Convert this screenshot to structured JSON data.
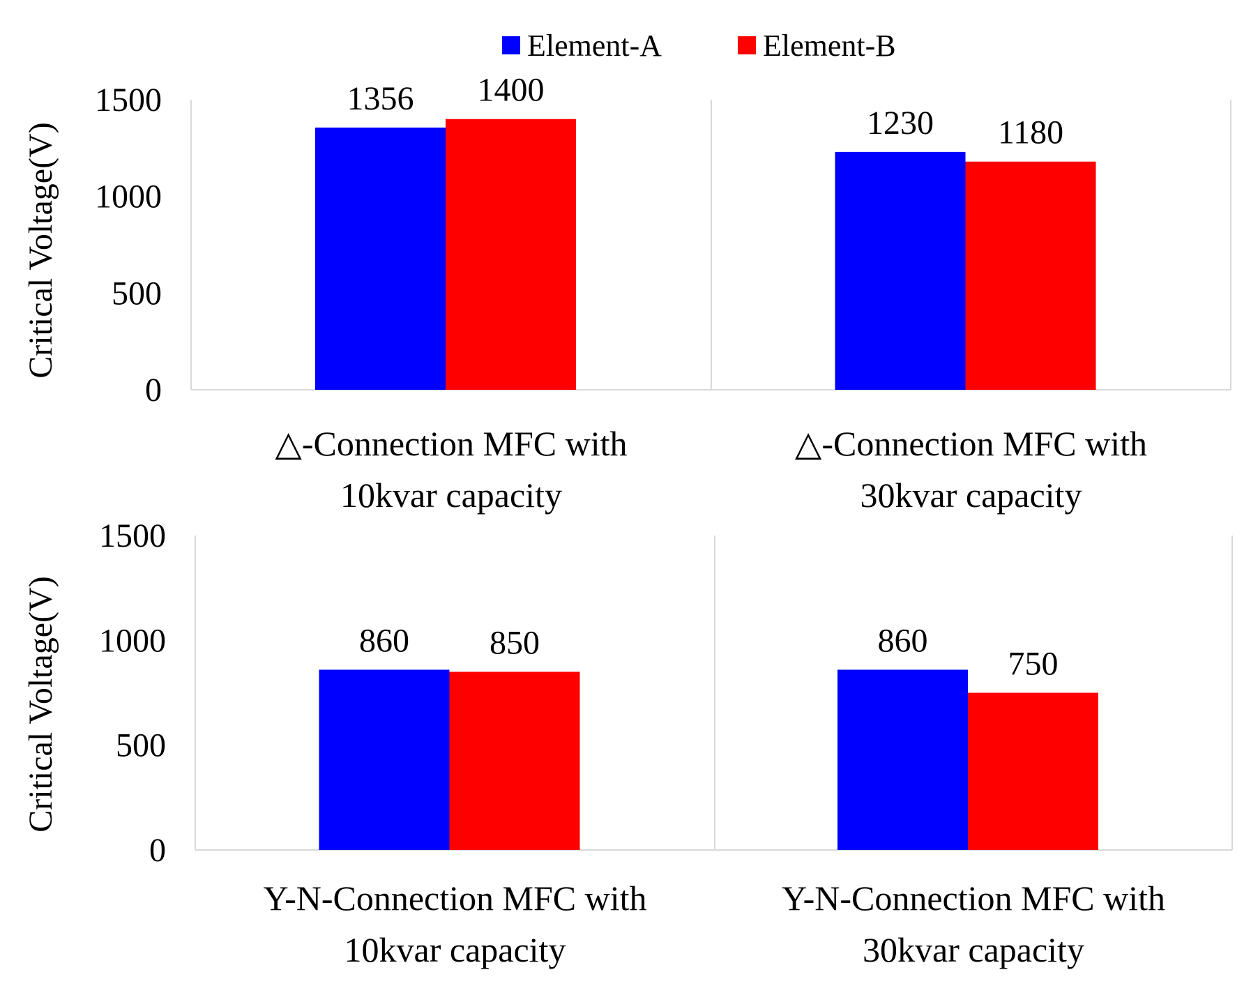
{
  "chart_data": {
    "type": "bar",
    "legend": {
      "position": "top-center",
      "entries": [
        {
          "name": "Element-A",
          "color": "#0000ff"
        },
        {
          "name": "Element-B",
          "color": "#ff0000"
        }
      ]
    },
    "series_colors": [
      "#0000ff",
      "#ff0000"
    ],
    "ylabel": "Critical Voltage(V)",
    "ylim": [
      0,
      1500
    ],
    "yticks": [
      "0",
      "500",
      "1000",
      "1500"
    ],
    "rows": [
      {
        "panels": [
          {
            "category": [
              "△-Connection MFC with",
              "10kvar capacity"
            ],
            "values": [
              1356,
              1400
            ],
            "labels": [
              "1356",
              "1400"
            ]
          },
          {
            "category": [
              "△-Connection MFC with",
              "30kvar capacity"
            ],
            "values": [
              1230,
              1180
            ],
            "labels": [
              "1230",
              "1180"
            ]
          }
        ]
      },
      {
        "panels": [
          {
            "category": [
              "Y-N-Connection MFC with",
              "10kvar capacity"
            ],
            "values": [
              860,
              850
            ],
            "labels": [
              "860",
              "850"
            ]
          },
          {
            "category": [
              "Y-N-Connection MFC with",
              "30kvar capacity"
            ],
            "values": [
              860,
              750
            ],
            "labels": [
              "860",
              "750"
            ]
          }
        ]
      }
    ]
  }
}
